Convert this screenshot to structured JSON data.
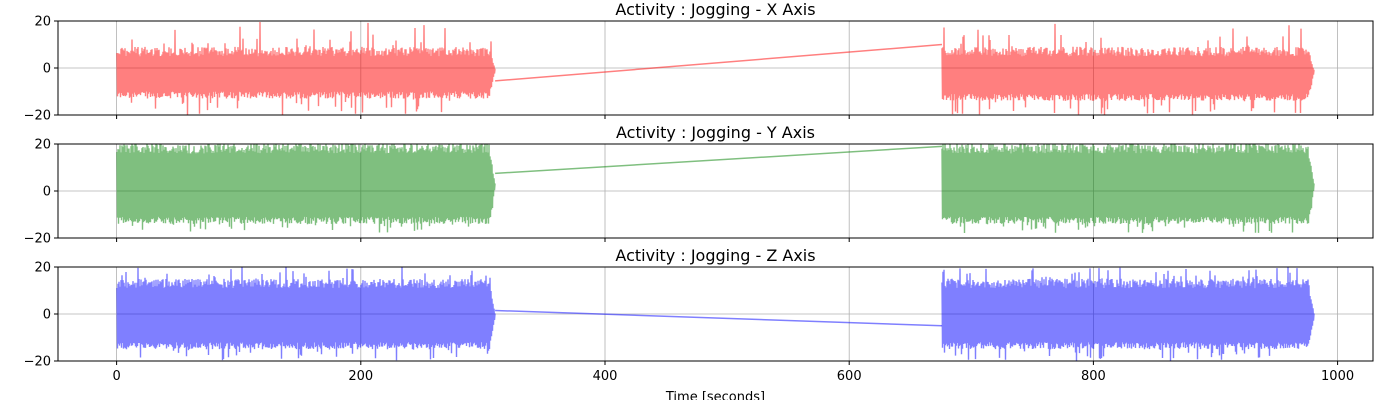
{
  "chart_data": [
    {
      "type": "line",
      "title": "Activity : Jogging - X Axis",
      "color": "#ff0000",
      "alpha": 0.5,
      "ylim": [
        -20,
        20
      ],
      "yticks": [
        -20,
        0,
        20
      ],
      "xlim": [
        -48,
        1029
      ],
      "xticks": [
        0,
        200,
        400,
        600,
        800,
        1000
      ],
      "grid": true,
      "show_xticklabels": false,
      "segments": [
        {
          "x_start": 0,
          "x_end": 310,
          "y_mean": -0.5,
          "y_top": 9,
          "y_bottom": -13,
          "y_peak_high": 20,
          "y_peak_low": -20
        },
        {
          "x_start": 676,
          "x_end": 981,
          "y_mean": -1,
          "y_top": 9,
          "y_bottom": -14,
          "y_peak_high": 19,
          "y_peak_low": -20
        }
      ],
      "connector": {
        "x": [
          310,
          676
        ],
        "y": [
          -5.5,
          10
        ]
      }
    },
    {
      "type": "line",
      "title": "Activity : Jogging - Y Axis",
      "color": "#008000",
      "alpha": 0.5,
      "ylim": [
        -20,
        20
      ],
      "yticks": [
        -20,
        0,
        20
      ],
      "xlim": [
        -48,
        1029
      ],
      "xticks": [
        0,
        200,
        400,
        600,
        800,
        1000
      ],
      "grid": true,
      "show_xticklabels": false,
      "segments": [
        {
          "x_start": 0,
          "x_end": 310,
          "y_mean": 3,
          "y_top": 20,
          "y_bottom": -14,
          "y_peak_high": 20,
          "y_peak_low": -18
        },
        {
          "x_start": 676,
          "x_end": 981,
          "y_mean": 3,
          "y_top": 20,
          "y_bottom": -14,
          "y_peak_high": 20,
          "y_peak_low": -18
        }
      ],
      "connector": {
        "x": [
          310,
          676
        ],
        "y": [
          7.5,
          19
        ]
      }
    },
    {
      "type": "line",
      "title": "Activity : Jogging - Z Axis",
      "color": "#0000ff",
      "alpha": 0.5,
      "ylim": [
        -20,
        20
      ],
      "yticks": [
        -20,
        0,
        20
      ],
      "xlim": [
        -48,
        1029
      ],
      "xticks": [
        0,
        200,
        400,
        600,
        800,
        1000
      ],
      "grid": true,
      "show_xticklabels": true,
      "xlabel": "Time [seconds]",
      "segments": [
        {
          "x_start": 0,
          "x_end": 310,
          "y_mean": 0,
          "y_top": 15,
          "y_bottom": -15,
          "y_peak_high": 20,
          "y_peak_low": -20
        },
        {
          "x_start": 676,
          "x_end": 981,
          "y_mean": 0,
          "y_top": 15,
          "y_bottom": -15,
          "y_peak_high": 20,
          "y_peak_low": -20
        }
      ],
      "connector": {
        "x": [
          310,
          676
        ],
        "y": [
          1.5,
          -5
        ]
      }
    }
  ]
}
